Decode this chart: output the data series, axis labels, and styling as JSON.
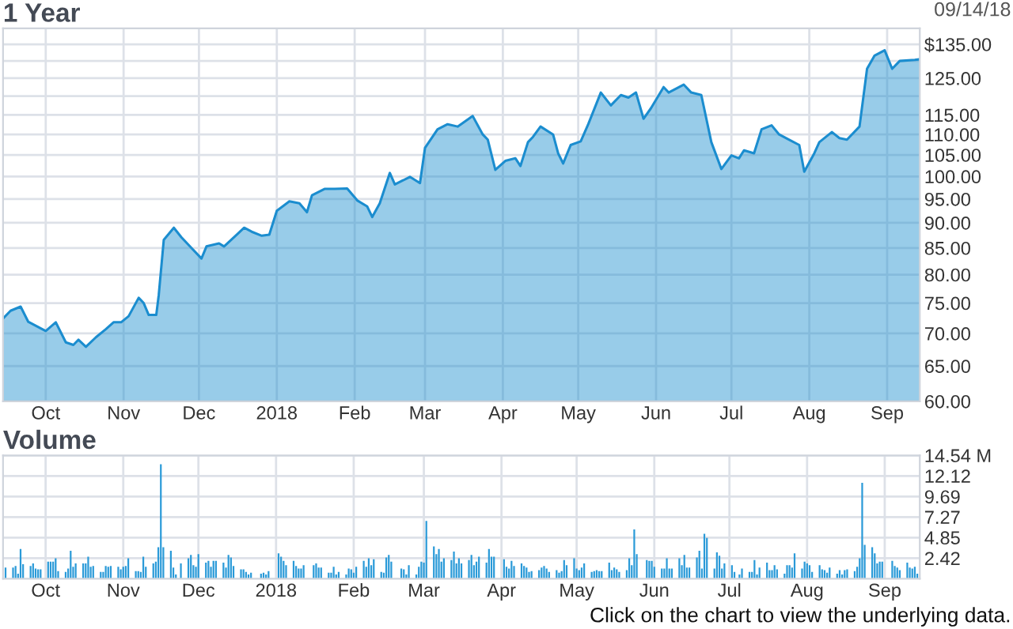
{
  "chart_data": [
    {
      "type": "area",
      "title": "1 Year",
      "annotations": [
        "09/14/18"
      ],
      "log": true,
      "grid": true,
      "xlim": [
        "2017-09-14",
        "2018-09-14"
      ],
      "xticks": [
        {
          "value": "2017-10-01",
          "label": "Oct"
        },
        {
          "value": "2017-11-01",
          "label": "Nov"
        },
        {
          "value": "2017-12-01",
          "label": "Dec"
        },
        {
          "value": "2018-01-01",
          "label": "2018"
        },
        {
          "value": "2018-02-01",
          "label": "Feb"
        },
        {
          "value": "2018-03-01",
          "label": "Mar"
        },
        {
          "value": "2018-04-01",
          "label": "Apr"
        },
        {
          "value": "2018-05-01",
          "label": "May"
        },
        {
          "value": "2018-06-01",
          "label": "Jun"
        },
        {
          "value": "2018-07-01",
          "label": "Jul"
        },
        {
          "value": "2018-08-01",
          "label": "Aug"
        },
        {
          "value": "2018-09-01",
          "label": "Sep"
        }
      ],
      "ylim": [
        60,
        140
      ],
      "yticks": [
        {
          "value": 60,
          "label": "60.00"
        },
        {
          "value": 65,
          "label": "65.00"
        },
        {
          "value": 70,
          "label": "70.00"
        },
        {
          "value": 75,
          "label": "75.00"
        },
        {
          "value": 80,
          "label": "80.00"
        },
        {
          "value": 85,
          "label": "85.00"
        },
        {
          "value": 90,
          "label": "90.00"
        },
        {
          "value": 95,
          "label": "95.00"
        },
        {
          "value": 100,
          "label": "100.00"
        },
        {
          "value": 105,
          "label": "105.00"
        },
        {
          "value": 110,
          "label": "110.00"
        },
        {
          "value": 115,
          "label": "115.00"
        },
        {
          "value": 120,
          "label": null
        },
        {
          "value": 125,
          "label": "125.00"
        },
        {
          "value": 130,
          "label": null
        },
        {
          "value": 135,
          "label": "$135.00"
        }
      ],
      "x": [
        "2017-09-14",
        "2017-09-17",
        "2017-09-21",
        "2017-09-24",
        "2017-10-01",
        "2017-10-05",
        "2017-10-09",
        "2017-10-12",
        "2017-10-14",
        "2017-10-17",
        "2017-10-21",
        "2017-10-25",
        "2017-10-28",
        "2017-10-31",
        "2017-11-03",
        "2017-11-07",
        "2017-11-09",
        "2017-11-11",
        "2017-11-14",
        "2017-11-15",
        "2017-11-17",
        "2017-11-21",
        "2017-11-24",
        "2017-11-28",
        "2017-12-02",
        "2017-12-04",
        "2017-12-09",
        "2017-12-11",
        "2017-12-16",
        "2017-12-19",
        "2017-12-22",
        "2017-12-26",
        "2017-12-29",
        "2018-01-01",
        "2018-01-06",
        "2018-01-10",
        "2018-01-13",
        "2018-01-15",
        "2018-01-20",
        "2018-01-24",
        "2018-01-29",
        "2018-02-02",
        "2018-02-06",
        "2018-02-08",
        "2018-02-11",
        "2018-02-15",
        "2018-02-17",
        "2018-02-23",
        "2018-02-27",
        "2018-03-01",
        "2018-03-06",
        "2018-03-10",
        "2018-03-14",
        "2018-03-20",
        "2018-03-24",
        "2018-03-26",
        "2018-03-29",
        "2018-04-02",
        "2018-04-06",
        "2018-04-08",
        "2018-04-11",
        "2018-04-13",
        "2018-04-16",
        "2018-04-21",
        "2018-04-23",
        "2018-04-25",
        "2018-04-28",
        "2018-05-02",
        "2018-05-05",
        "2018-05-10",
        "2018-05-14",
        "2018-05-18",
        "2018-05-21",
        "2018-05-24",
        "2018-05-27",
        "2018-05-30",
        "2018-06-04",
        "2018-06-06",
        "2018-06-12",
        "2018-06-15",
        "2018-06-19",
        "2018-06-23",
        "2018-06-27",
        "2018-07-01",
        "2018-07-04",
        "2018-07-06",
        "2018-07-10",
        "2018-07-13",
        "2018-07-17",
        "2018-07-20",
        "2018-07-24",
        "2018-07-28",
        "2018-07-30",
        "2018-08-03",
        "2018-08-05",
        "2018-08-10",
        "2018-08-13",
        "2018-08-16",
        "2018-08-21",
        "2018-08-24",
        "2018-08-27",
        "2018-08-31",
        "2018-09-03",
        "2018-09-06",
        "2018-09-12",
        "2018-09-14"
      ],
      "series": [
        {
          "color": "#1b8dcf",
          "values": [
            72.4,
            73.7,
            74.4,
            71.9,
            70.4,
            71.8,
            68.6,
            68.2,
            69.0,
            67.9,
            69.4,
            70.7,
            71.8,
            71.8,
            72.8,
            75.9,
            75.0,
            73.0,
            73.0,
            76.4,
            86.6,
            89.0,
            87.1,
            85.0,
            83.0,
            85.3,
            85.9,
            85.3,
            87.6,
            89.0,
            88.2,
            87.4,
            87.6,
            92.5,
            94.5,
            94.1,
            92.2,
            95.8,
            97.2,
            97.2,
            97.3,
            94.7,
            93.4,
            91.2,
            94.1,
            100.8,
            98.2,
            99.9,
            98.5,
            106.7,
            111.3,
            112.6,
            112.0,
            114.7,
            110.0,
            108.7,
            101.5,
            103.6,
            104.2,
            102.4,
            108.1,
            109.4,
            112.0,
            110.0,
            105.4,
            103.0,
            107.4,
            108.3,
            112.6,
            121.0,
            117.5,
            120.3,
            119.6,
            121.0,
            114.0,
            116.8,
            122.5,
            121.0,
            123.2,
            121.0,
            120.3,
            108.1,
            101.7,
            104.9,
            104.2,
            106.1,
            105.4,
            111.3,
            112.3,
            110.0,
            108.7,
            107.4,
            101.1,
            105.4,
            108.1,
            110.6,
            109.1,
            108.7,
            112.0,
            127.7,
            131.6,
            133.2,
            127.7,
            130.0,
            130.3,
            130.5
          ]
        }
      ]
    },
    {
      "type": "bar",
      "title": "Volume",
      "annotations": [
        "Click on the chart to view the underlying data."
      ],
      "grid": true,
      "xlim": [
        "2017-09-14",
        "2018-09-15"
      ],
      "xticks": [
        {
          "value": "2017-10-01",
          "label": "Oct"
        },
        {
          "value": "2017-11-01",
          "label": "Nov"
        },
        {
          "value": "2017-12-01",
          "label": "Dec"
        },
        {
          "value": "2018-01-01",
          "label": "2018"
        },
        {
          "value": "2018-02-01",
          "label": "Feb"
        },
        {
          "value": "2018-03-01",
          "label": "Mar"
        },
        {
          "value": "2018-04-01",
          "label": "Apr"
        },
        {
          "value": "2018-05-01",
          "label": "May"
        },
        {
          "value": "2018-06-01",
          "label": "Jun"
        },
        {
          "value": "2018-07-01",
          "label": "Jul"
        },
        {
          "value": "2018-08-01",
          "label": "Aug"
        },
        {
          "value": "2018-09-01",
          "label": "Sep"
        }
      ],
      "ylim": [
        0,
        14.54
      ],
      "yticks": [
        2.42,
        4.85,
        7.27,
        9.69,
        12.12,
        {
          "value": 14.54,
          "label": "14.54 M"
        }
      ],
      "x": [
        "2017-09-15",
        "2017-09-18",
        "2017-09-19",
        "2017-09-20",
        "2017-09-21",
        "2017-09-22",
        "2017-09-25",
        "2017-09-26",
        "2017-09-27",
        "2017-09-28",
        "2017-09-29",
        "2017-10-02",
        "2017-10-03",
        "2017-10-04",
        "2017-10-05",
        "2017-10-06",
        "2017-10-09",
        "2017-10-10",
        "2017-10-11",
        "2017-10-12",
        "2017-10-13",
        "2017-10-16",
        "2017-10-17",
        "2017-10-18",
        "2017-10-19",
        "2017-10-20",
        "2017-10-23",
        "2017-10-24",
        "2017-10-25",
        "2017-10-26",
        "2017-10-27",
        "2017-10-30",
        "2017-10-31",
        "2017-11-01",
        "2017-11-02",
        "2017-11-03",
        "2017-11-06",
        "2017-11-07",
        "2017-11-08",
        "2017-11-09",
        "2017-11-10",
        "2017-11-13",
        "2017-11-14",
        "2017-11-15",
        "2017-11-16",
        "2017-11-17",
        "2017-11-20",
        "2017-11-21",
        "2017-11-22",
        "2017-11-24",
        "2017-11-27",
        "2017-11-28",
        "2017-11-29",
        "2017-11-30",
        "2017-12-01",
        "2017-12-04",
        "2017-12-05",
        "2017-12-06",
        "2017-12-07",
        "2017-12-08",
        "2017-12-11",
        "2017-12-12",
        "2017-12-13",
        "2017-12-14",
        "2017-12-15",
        "2017-12-18",
        "2017-12-19",
        "2017-12-20",
        "2017-12-21",
        "2017-12-22",
        "2017-12-26",
        "2017-12-27",
        "2017-12-28",
        "2017-12-29",
        "2018-01-02",
        "2018-01-03",
        "2018-01-04",
        "2018-01-05",
        "2018-01-08",
        "2018-01-09",
        "2018-01-10",
        "2018-01-11",
        "2018-01-12",
        "2018-01-16",
        "2018-01-17",
        "2018-01-18",
        "2018-01-19",
        "2018-01-22",
        "2018-01-23",
        "2018-01-24",
        "2018-01-25",
        "2018-01-26",
        "2018-01-29",
        "2018-01-30",
        "2018-01-31",
        "2018-02-01",
        "2018-02-02",
        "2018-02-05",
        "2018-02-06",
        "2018-02-07",
        "2018-02-08",
        "2018-02-09",
        "2018-02-12",
        "2018-02-13",
        "2018-02-14",
        "2018-02-15",
        "2018-02-16",
        "2018-02-20",
        "2018-02-21",
        "2018-02-22",
        "2018-02-23",
        "2018-02-26",
        "2018-02-27",
        "2018-02-28",
        "2018-03-01",
        "2018-03-02",
        "2018-03-05",
        "2018-03-06",
        "2018-03-07",
        "2018-03-08",
        "2018-03-09",
        "2018-03-12",
        "2018-03-13",
        "2018-03-14",
        "2018-03-15",
        "2018-03-16",
        "2018-03-19",
        "2018-03-20",
        "2018-03-21",
        "2018-03-22",
        "2018-03-23",
        "2018-03-26",
        "2018-03-27",
        "2018-03-28",
        "2018-03-29",
        "2018-04-02",
        "2018-04-03",
        "2018-04-04",
        "2018-04-05",
        "2018-04-06",
        "2018-04-09",
        "2018-04-10",
        "2018-04-11",
        "2018-04-12",
        "2018-04-13",
        "2018-04-16",
        "2018-04-17",
        "2018-04-18",
        "2018-04-19",
        "2018-04-20",
        "2018-04-23",
        "2018-04-24",
        "2018-04-25",
        "2018-04-26",
        "2018-04-27",
        "2018-04-30",
        "2018-05-01",
        "2018-05-02",
        "2018-05-03",
        "2018-05-04",
        "2018-05-07",
        "2018-05-08",
        "2018-05-09",
        "2018-05-10",
        "2018-05-11",
        "2018-05-14",
        "2018-05-15",
        "2018-05-16",
        "2018-05-17",
        "2018-05-18",
        "2018-05-21",
        "2018-05-22",
        "2018-05-23",
        "2018-05-24",
        "2018-05-25",
        "2018-05-29",
        "2018-05-30",
        "2018-05-31",
        "2018-06-01",
        "2018-06-04",
        "2018-06-05",
        "2018-06-06",
        "2018-06-07",
        "2018-06-08",
        "2018-06-11",
        "2018-06-12",
        "2018-06-13",
        "2018-06-14",
        "2018-06-15",
        "2018-06-18",
        "2018-06-19",
        "2018-06-20",
        "2018-06-21",
        "2018-06-22",
        "2018-06-25",
        "2018-06-26",
        "2018-06-27",
        "2018-06-28",
        "2018-06-29",
        "2018-07-02",
        "2018-07-03",
        "2018-07-05",
        "2018-07-06",
        "2018-07-09",
        "2018-07-10",
        "2018-07-11",
        "2018-07-12",
        "2018-07-13",
        "2018-07-16",
        "2018-07-17",
        "2018-07-18",
        "2018-07-19",
        "2018-07-20",
        "2018-07-23",
        "2018-07-24",
        "2018-07-25",
        "2018-07-26",
        "2018-07-27",
        "2018-07-30",
        "2018-07-31",
        "2018-08-01",
        "2018-08-02",
        "2018-08-03",
        "2018-08-06",
        "2018-08-07",
        "2018-08-08",
        "2018-08-09",
        "2018-08-10",
        "2018-08-13",
        "2018-08-14",
        "2018-08-15",
        "2018-08-16",
        "2018-08-17",
        "2018-08-20",
        "2018-08-21",
        "2018-08-22",
        "2018-08-23",
        "2018-08-24",
        "2018-08-27",
        "2018-08-28",
        "2018-08-29",
        "2018-08-30",
        "2018-08-31",
        "2018-09-04",
        "2018-09-05",
        "2018-09-06",
        "2018-09-07",
        "2018-09-10",
        "2018-09-11",
        "2018-09-12",
        "2018-09-13",
        "2018-09-14"
      ],
      "series": [
        {
          "color": "#2a9ad8",
          "values": [
            1.3,
            1.3,
            1.5,
            0.6,
            3.5,
            1.7,
            1.5,
            1.8,
            1.2,
            1.1,
            1.1,
            2.0,
            2.0,
            2.0,
            2.4,
            0.9,
            0.8,
            1.2,
            3.3,
            1.4,
            1.8,
            1.8,
            1.8,
            2.6,
            1.4,
            1.5,
            0.8,
            0.8,
            1.5,
            1.4,
            1.5,
            1.4,
            1.1,
            1.4,
            1.5,
            2.4,
            0.9,
            0.9,
            0.8,
            2.6,
            1.4,
            1.8,
            2.0,
            3.7,
            13.5,
            3.7,
            3.3,
            1.3,
            0.5,
            1.8,
            2.4,
            2.8,
            1.6,
            1.4,
            2.9,
            1.9,
            2.1,
            1.4,
            2.1,
            2.1,
            1.9,
            1.3,
            2.8,
            2.5,
            1.5,
            1.1,
            1.1,
            0.8,
            0.5,
            0.7,
            0.6,
            0.7,
            0.5,
            0.9,
            3.0,
            2.6,
            2.1,
            1.6,
            2.1,
            1.5,
            1.2,
            1.2,
            1.6,
            1.6,
            1.8,
            1.3,
            1.3,
            0.7,
            0.7,
            1.4,
            0.5,
            0.8,
            0.5,
            1.2,
            1.1,
            0.7,
            1.4,
            2.1,
            1.4,
            2.4,
            1.6,
            2.3,
            0.8,
            0.7,
            2.5,
            2.8,
            2.0,
            1.2,
            1.1,
            0.5,
            1.6,
            0.5,
            1.4,
            2.0,
            1.9,
            6.8,
            3.8,
            2.9,
            3.5,
            2.0,
            2.4,
            2.2,
            3.2,
            1.8,
            2.4,
            1.8,
            2.2,
            2.8,
            1.6,
            2.0,
            2.6,
            1.9,
            3.5,
            2.6,
            2.6,
            2.3,
            1.4,
            1.2,
            2.1,
            1.5,
            1.8,
            1.5,
            1.3,
            0.8,
            0.9,
            1.0,
            1.3,
            1.5,
            1.2,
            0.8,
            1.0,
            0.7,
            0.9,
            2.2,
            1.6,
            2.4,
            1.2,
            1.0,
            1.3,
            1.8,
            0.8,
            0.9,
            1.0,
            0.9,
            0.9,
            1.9,
            1.0,
            1.3,
            1.1,
            0.8,
            1.0,
            2.4,
            1.6,
            5.8,
            2.9,
            2.2,
            2.1,
            2.1,
            1.4,
            1.2,
            1.2,
            2.4,
            1.2,
            1.2,
            2.4,
            1.6,
            2.8,
            1.3,
            1.3,
            2.5,
            3.3,
            1.2,
            5.3,
            4.8,
            1.2,
            3.1,
            2.7,
            1.2,
            1.8,
            1.6,
            0.8,
            0.5,
            1.2,
            0.8,
            0.8,
            2.2,
            0.5,
            1.3,
            1.9,
            1.0,
            1.0,
            1.6,
            1.1,
            0.6,
            1.6,
            1.6,
            1.3,
            3.0,
            1.2,
            2.0,
            1.8,
            1.6,
            0.8,
            1.6,
            1.1,
            1.0,
            0.7,
            1.3,
            0.6,
            1.0,
            0.5,
            1.0,
            1.1,
            0.9,
            1.4,
            2.4,
            11.3,
            4.0,
            3.7,
            3.0,
            1.8,
            2.0,
            2.0,
            2.1,
            1.5,
            1.3,
            1.0,
            1.9,
            1.3,
            1.2,
            1.4,
            0.6
          ]
        }
      ]
    }
  ]
}
